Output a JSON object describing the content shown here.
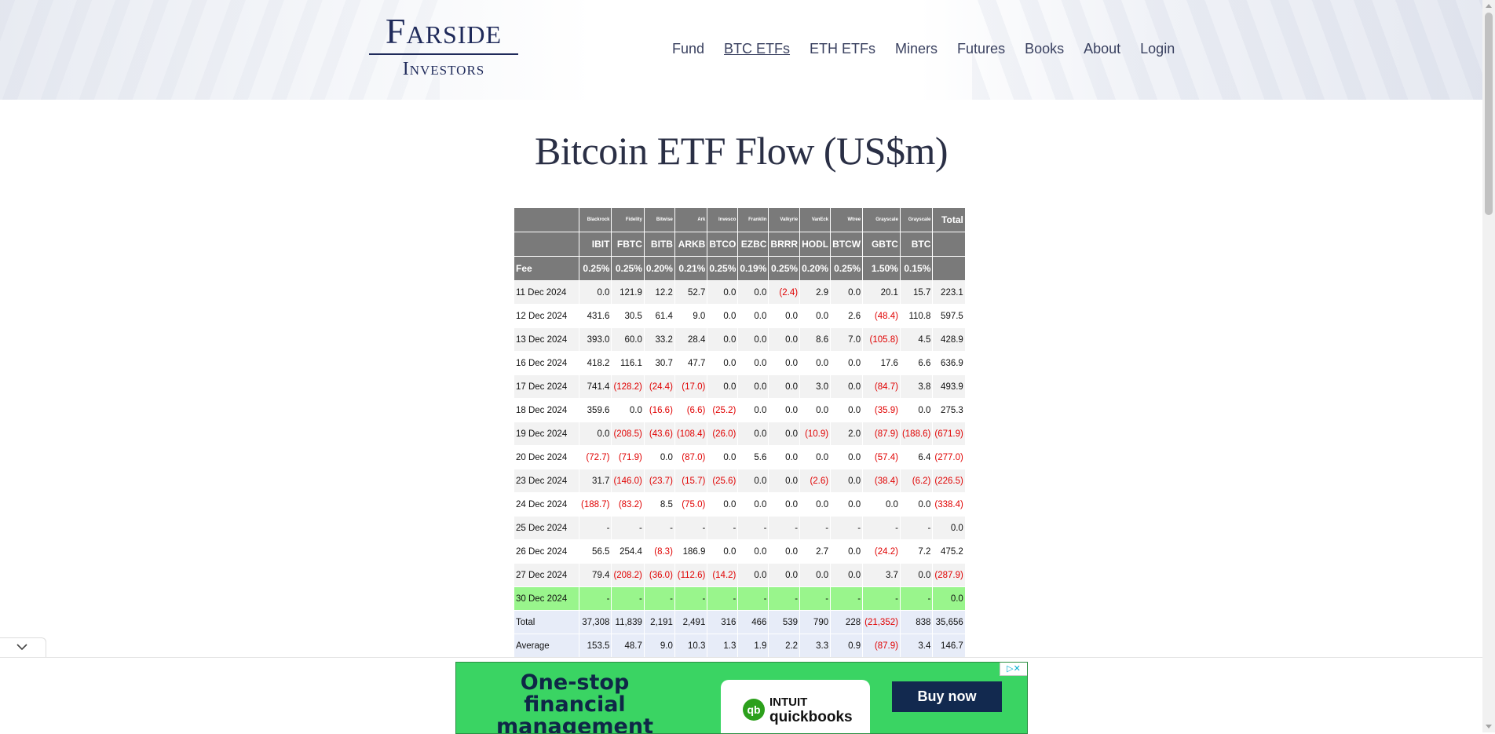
{
  "header": {
    "logo_line1": "Farside",
    "logo_line2": "Investors",
    "nav": [
      {
        "label": "Fund",
        "name": "nav-fund",
        "active": false
      },
      {
        "label": "BTC ETFs",
        "name": "nav-btc-etfs",
        "active": true
      },
      {
        "label": "ETH ETFs",
        "name": "nav-eth-etfs",
        "active": false
      },
      {
        "label": "Miners",
        "name": "nav-miners",
        "active": false
      },
      {
        "label": "Futures",
        "name": "nav-futures",
        "active": false
      },
      {
        "label": "Books",
        "name": "nav-books",
        "active": false
      },
      {
        "label": "About",
        "name": "nav-about",
        "active": false
      },
      {
        "label": "Login",
        "name": "nav-login",
        "active": false
      }
    ]
  },
  "page_title": "Bitcoin ETF Flow (US$m)",
  "table": {
    "providers": [
      "",
      "Blackrock",
      "Fidelity",
      "Bitwise",
      "Ark",
      "Invesco",
      "Franklin",
      "Valkyrie",
      "VanEck",
      "Wtree",
      "Grayscale",
      "Grayscale",
      "Total"
    ],
    "tickers": [
      "",
      "IBIT",
      "FBTC",
      "BITB",
      "ARKB",
      "BTCO",
      "EZBC",
      "BRRR",
      "HODL",
      "BTCW",
      "GBTC",
      "BTC",
      ""
    ],
    "fees": [
      "Fee",
      "0.25%",
      "0.25%",
      "0.20%",
      "0.21%",
      "0.25%",
      "0.19%",
      "0.25%",
      "0.20%",
      "0.25%",
      "1.50%",
      "0.15%",
      ""
    ],
    "rows": [
      {
        "date": "11 Dec 2024",
        "values": [
          "0.0",
          "121.9",
          "12.2",
          "52.7",
          "0.0",
          "0.0",
          "(2.4)",
          "2.9",
          "0.0",
          "20.1",
          "15.7",
          "223.1"
        ]
      },
      {
        "date": "12 Dec 2024",
        "values": [
          "431.6",
          "30.5",
          "61.4",
          "9.0",
          "0.0",
          "0.0",
          "0.0",
          "0.0",
          "2.6",
          "(48.4)",
          "110.8",
          "597.5"
        ]
      },
      {
        "date": "13 Dec 2024",
        "values": [
          "393.0",
          "60.0",
          "33.2",
          "28.4",
          "0.0",
          "0.0",
          "0.0",
          "8.6",
          "7.0",
          "(105.8)",
          "4.5",
          "428.9"
        ]
      },
      {
        "date": "16 Dec 2024",
        "values": [
          "418.2",
          "116.1",
          "30.7",
          "47.7",
          "0.0",
          "0.0",
          "0.0",
          "0.0",
          "0.0",
          "17.6",
          "6.6",
          "636.9"
        ]
      },
      {
        "date": "17 Dec 2024",
        "values": [
          "741.4",
          "(128.2)",
          "(24.4)",
          "(17.0)",
          "0.0",
          "0.0",
          "0.0",
          "3.0",
          "0.0",
          "(84.7)",
          "3.8",
          "493.9"
        ]
      },
      {
        "date": "18 Dec 2024",
        "values": [
          "359.6",
          "0.0",
          "(16.6)",
          "(6.6)",
          "(25.2)",
          "0.0",
          "0.0",
          "0.0",
          "0.0",
          "(35.9)",
          "0.0",
          "275.3"
        ]
      },
      {
        "date": "19 Dec 2024",
        "values": [
          "0.0",
          "(208.5)",
          "(43.6)",
          "(108.4)",
          "(26.0)",
          "0.0",
          "0.0",
          "(10.9)",
          "2.0",
          "(87.9)",
          "(188.6)",
          "(671.9)"
        ]
      },
      {
        "date": "20 Dec 2024",
        "values": [
          "(72.7)",
          "(71.9)",
          "0.0",
          "(87.0)",
          "0.0",
          "5.6",
          "0.0",
          "0.0",
          "0.0",
          "(57.4)",
          "6.4",
          "(277.0)"
        ]
      },
      {
        "date": "23 Dec 2024",
        "values": [
          "31.7",
          "(146.0)",
          "(23.7)",
          "(15.7)",
          "(25.6)",
          "0.0",
          "0.0",
          "(2.6)",
          "0.0",
          "(38.4)",
          "(6.2)",
          "(226.5)"
        ]
      },
      {
        "date": "24 Dec 2024",
        "values": [
          "(188.7)",
          "(83.2)",
          "8.5",
          "(75.0)",
          "0.0",
          "0.0",
          "0.0",
          "0.0",
          "0.0",
          "0.0",
          "0.0",
          "(338.4)"
        ]
      },
      {
        "date": "25 Dec 2024",
        "values": [
          "-",
          "-",
          "-",
          "-",
          "-",
          "-",
          "-",
          "-",
          "-",
          "-",
          "-",
          "0.0"
        ]
      },
      {
        "date": "26 Dec 2024",
        "values": [
          "56.5",
          "254.4",
          "(8.3)",
          "186.9",
          "0.0",
          "0.0",
          "0.0",
          "2.7",
          "0.0",
          "(24.2)",
          "7.2",
          "475.2"
        ]
      },
      {
        "date": "27 Dec 2024",
        "values": [
          "79.4",
          "(208.2)",
          "(36.0)",
          "(112.6)",
          "(14.2)",
          "0.0",
          "0.0",
          "0.0",
          "0.0",
          "3.7",
          "0.0",
          "(287.9)"
        ]
      },
      {
        "date": "30 Dec 2024",
        "values": [
          "-",
          "-",
          "-",
          "-",
          "-",
          "-",
          "-",
          "-",
          "-",
          "-",
          "-",
          "0.0"
        ],
        "highlight": true
      }
    ],
    "summary": [
      {
        "label": "Total",
        "values": [
          "37,308",
          "11,839",
          "2,191",
          "2,491",
          "316",
          "466",
          "539",
          "790",
          "228",
          "(21,352)",
          "838",
          "35,656"
        ]
      },
      {
        "label": "Average",
        "values": [
          "153.5",
          "48.7",
          "9.0",
          "10.3",
          "1.3",
          "1.9",
          "2.2",
          "3.3",
          "0.9",
          "(87.9)",
          "3.4",
          "146.7"
        ]
      }
    ]
  },
  "ad": {
    "headline": "One-stop financial management",
    "brand_line1": "INTUIT",
    "brand_line2": "quickbooks",
    "brand_mark": "qb",
    "cta": "Buy now",
    "adchoices_glyph": "▷✕"
  },
  "colors": {
    "header_row_bg": "#7a7a7a",
    "negative": "#e00000",
    "highlight_row": "#99f58c",
    "summary_row": "#e7ecf8",
    "ad_bg": "#3ad463",
    "ad_button": "#12294f"
  }
}
